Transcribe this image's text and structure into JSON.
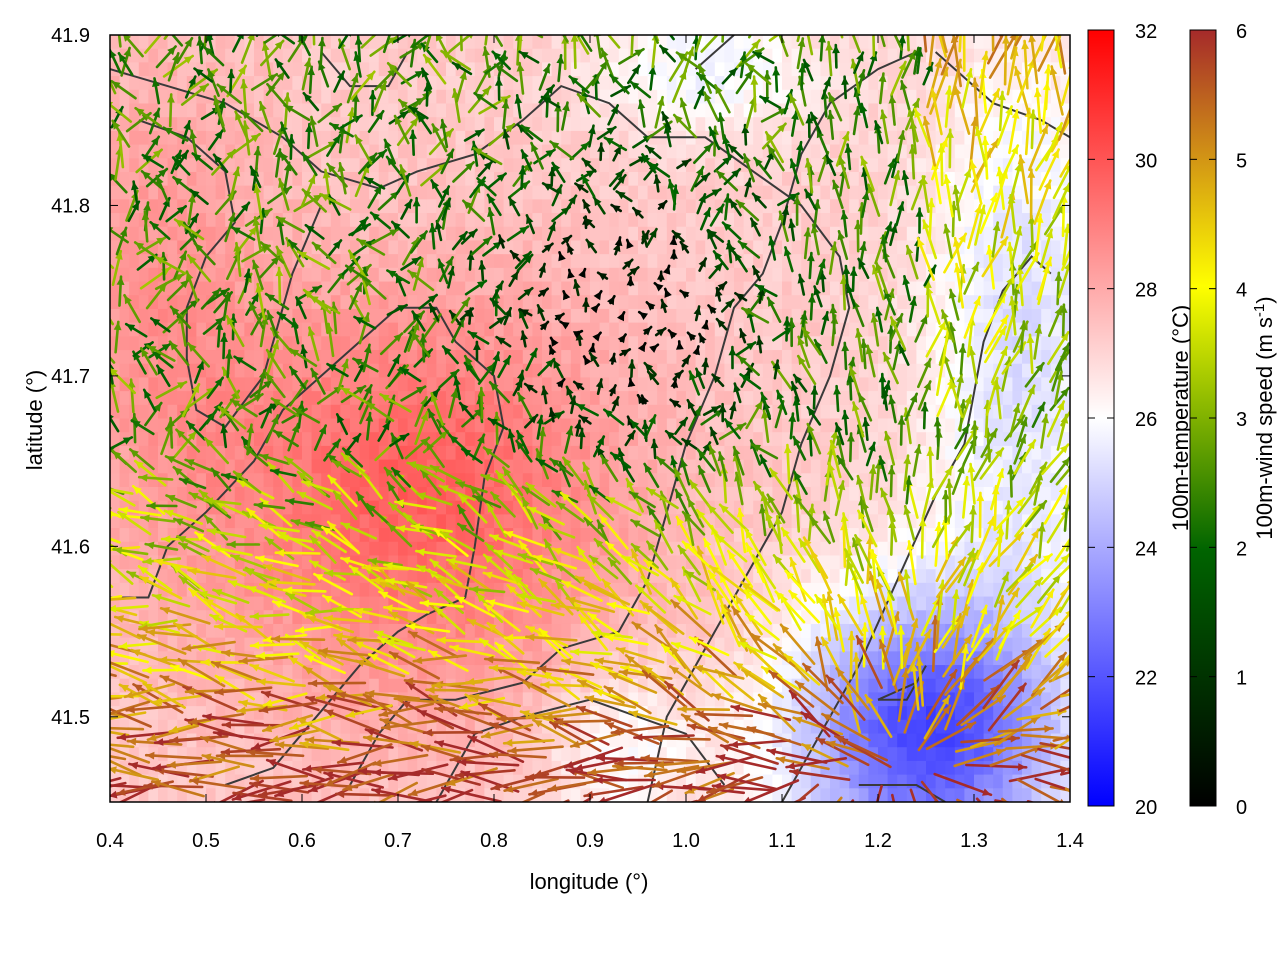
{
  "chart_data": {
    "type": "heatmap",
    "subtype": "vector-field over scalar heatmap with elevation contours",
    "xlabel": "longitude (°)",
    "ylabel": "latitude (°)",
    "xlim": [
      0.4,
      1.4
    ],
    "ylim": [
      41.45,
      41.9
    ],
    "x_ticks": [
      "0.4",
      "0.5",
      "0.6",
      "0.7",
      "0.8",
      "0.9",
      "1.0",
      "1.1",
      "1.2",
      "1.3",
      "1.4"
    ],
    "y_ticks": [
      "41.5",
      "41.6",
      "41.7",
      "41.8",
      "41.9"
    ],
    "temperature_colorbar": {
      "label": "100m-temperature (°C)",
      "range": [
        20,
        32
      ],
      "ticks": [
        "20",
        "22",
        "24",
        "26",
        "28",
        "30",
        "32"
      ],
      "colors": [
        "#0000ff",
        "#ffffff",
        "#ff0000"
      ]
    },
    "wind_colorbar": {
      "label": "100m-wind speed (m s-1)",
      "label_main": "100m-wind speed (m s",
      "label_sup": "-1",
      "label_end": ")",
      "range": [
        0,
        6
      ],
      "ticks": [
        "0",
        "1",
        "2",
        "3",
        "4",
        "5",
        "6"
      ],
      "colors": [
        "#000000",
        "#006400",
        "#ffff00",
        "#a52a2a"
      ]
    },
    "grid": false,
    "contours_color": "#3a3a3a"
  }
}
